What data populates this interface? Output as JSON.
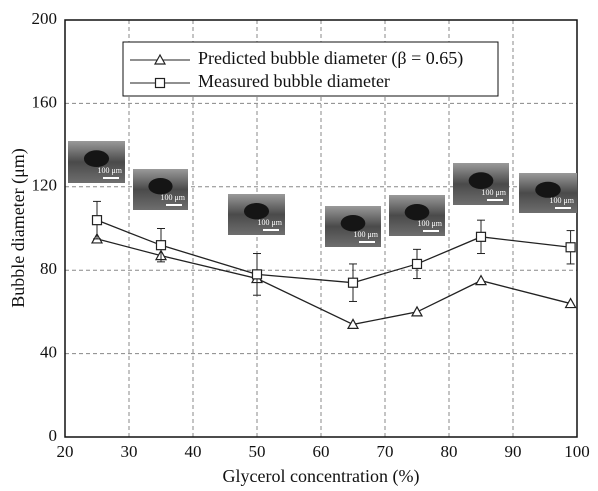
{
  "chart_data": {
    "type": "line",
    "x_label": "Glycerol concentration (%)",
    "y_label": "Bubble diameter (μm)",
    "x": [
      25,
      35,
      50,
      65,
      75,
      85,
      99
    ],
    "series": [
      {
        "name": "Predicted bubble diameter (β = 0.65)",
        "color": "#222222",
        "marker": "triangle",
        "values": [
          95,
          87,
          76,
          54,
          60,
          75,
          64
        ]
      },
      {
        "name": "Measured bubble diameter",
        "color": "#222222",
        "marker": "square",
        "values": [
          104,
          92,
          78,
          74,
          83,
          96,
          91
        ],
        "errors": [
          9,
          8,
          10,
          9,
          7,
          8,
          8
        ]
      }
    ],
    "inset_labels": [
      "100 μm",
      "100 μm",
      "100 μm",
      "100 μm",
      "100 μm",
      "100 μm",
      "100 μm"
    ],
    "xlim": [
      20,
      100
    ],
    "xticks": [
      20,
      30,
      40,
      50,
      60,
      70,
      80,
      90,
      100
    ],
    "ylim": [
      0,
      200
    ],
    "yticks": [
      0,
      40,
      80,
      120,
      160,
      200
    ],
    "grid": true,
    "legend": "top"
  }
}
